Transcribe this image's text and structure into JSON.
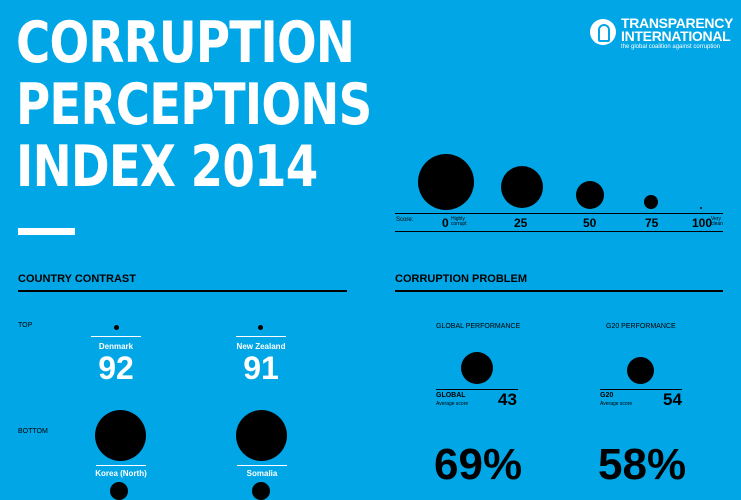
{
  "title": {
    "line1": "CORRUPTION",
    "line2": "PERCEPTIONS",
    "line3": "INDEX 2014"
  },
  "logo": {
    "line1": "TRANSPARENCY",
    "line2": "INTERNATIONAL",
    "tagline": "the global coalition against corruption"
  },
  "scale": {
    "label": "Score:",
    "points": [
      {
        "value": "0",
        "note": "Highly corrupt"
      },
      {
        "value": "25",
        "note": ""
      },
      {
        "value": "50",
        "note": ""
      },
      {
        "value": "75",
        "note": ""
      },
      {
        "value": "100",
        "note": "Very clean"
      }
    ]
  },
  "country_contrast": {
    "heading": "COUNTRY CONTRAST",
    "top_label": "TOP",
    "bottom_label": "BOTTOM",
    "top": [
      {
        "country": "Denmark",
        "score": "92"
      },
      {
        "country": "New Zealand",
        "score": "91"
      }
    ],
    "bottom": [
      {
        "country": "Korea (North)"
      },
      {
        "country": "Somalia"
      }
    ]
  },
  "corruption_problem": {
    "heading": "CORRUPTION PROBLEM",
    "global": {
      "title": "GLOBAL PERFORMANCE",
      "label": "GLOBAL",
      "sub": "Average score",
      "score": "43",
      "percent": "69%"
    },
    "g20": {
      "title": "G20 PERFORMANCE",
      "label": "G20",
      "sub": "Average score",
      "score": "54",
      "percent": "58%"
    }
  },
  "colors": {
    "background": "#00a6e6",
    "ink": "#000000",
    "text": "#ffffff"
  }
}
